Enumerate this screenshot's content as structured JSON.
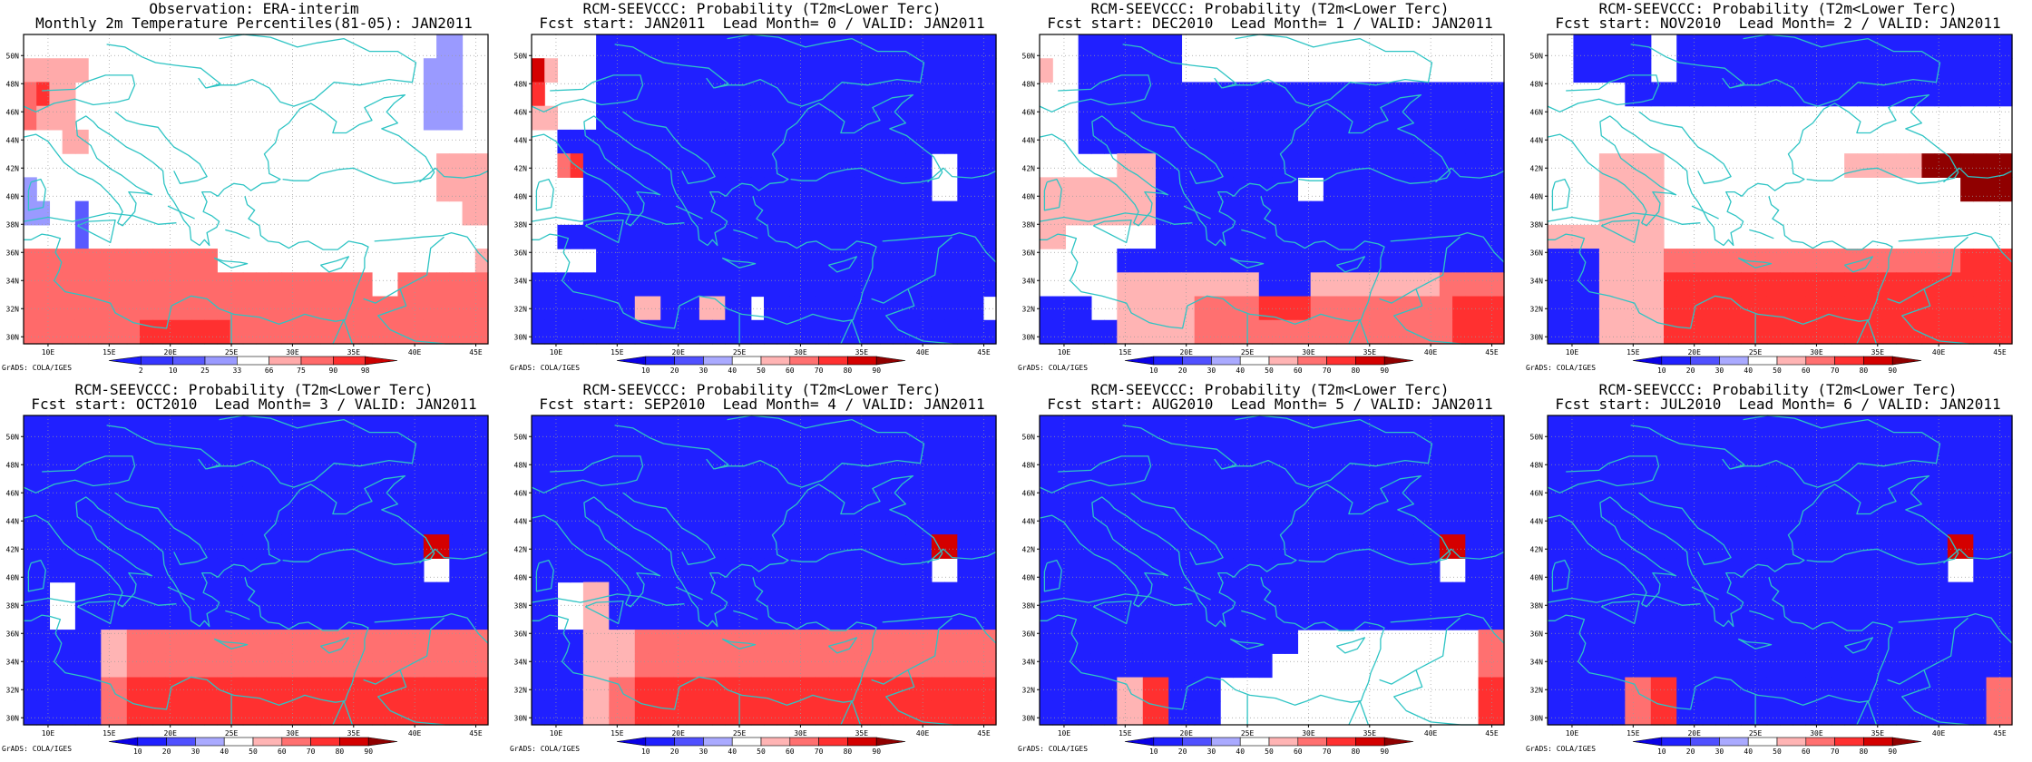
{
  "colors": {
    "coastline": "#2ec4c4",
    "frame": "#000000",
    "grid": "#9a9a9a"
  },
  "axes": {
    "lon_ticks": [
      "10E",
      "15E",
      "20E",
      "25E",
      "30E",
      "35E",
      "40E",
      "45E"
    ],
    "lat_ticks": [
      "30N",
      "32N",
      "34N",
      "36N",
      "38N",
      "40N",
      "42N",
      "44N",
      "46N",
      "48N",
      "50N"
    ],
    "lon_range": [
      8,
      46
    ],
    "lat_range": [
      29.5,
      51.5
    ]
  },
  "credit": "GrADS: COLA/IGES",
  "colorbars": {
    "percentile": {
      "labels": [
        "2",
        "10",
        "25",
        "33",
        "66",
        "75",
        "90",
        "98"
      ],
      "colors": [
        "#1a1aff",
        "#3535ff",
        "#5a5aff",
        "#9a9aff",
        "#ffffff",
        "#ffaaaa",
        "#ff6a6a",
        "#ff3030",
        "#cc0000"
      ]
    },
    "probability": {
      "labels": [
        "10",
        "20",
        "30",
        "40",
        "50",
        "60",
        "70",
        "80",
        "90"
      ],
      "colors": [
        "#0a00e6",
        "#2020ff",
        "#5050ff",
        "#aaaaff",
        "#ffffff",
        "#ffb4b4",
        "#ff7070",
        "#ff3030",
        "#d40000",
        "#900000"
      ]
    }
  },
  "panels": [
    {
      "title1": "Observation: ERA-interim",
      "title2": "Monthly 2m Temperature Percentiles(81-05): JAN2011",
      "colorbar": "percentile",
      "grid_rows": [
        "444444444444444444444444444444443344",
        "555554444444444444444444444444433344",
        "675544444444444444444444444444433344",
        "655544444444444444444444444444433344",
        "444554444444444444444444444444444444",
        "444444444444444444444444444444445555",
        "344444444444444444444444444444445555",
        "334424444444444444444444444444444455",
        "444424444444444444444444444444444444",
        "666666666666666444444444444444444445",
        "666666666666666666666666666446666666",
        "666666666666666666666666666666666666",
        "666666666777777766666666666666666666"
      ]
    },
    {
      "title1": "RCM-SEEVCCC: Probability (T2m<Lower Terc)",
      "title2": "Fcst start: JAN2011  Lead Month= 0 / VALID: JAN2011",
      "colorbar": "probability",
      "grid_rows": [
        "444441111111111111111111111111111111",
        "854441111111111111111111111111111111",
        "744441111111111111111111111111111111",
        "554441111111111111111111111111111111",
        "441111111111111111111111111111111111",
        "446711111111111111111111111111144111",
        "444411111111111111111111111111144111",
        "444411111111111111111111111111111111",
        "441111111111111111111111111111111111",
        "444441111111111111111111111111111111",
        "111111111111111111111111111111111111",
        "111111115511155114111111111111111114",
        "111111111111111111111111111111111111"
      ]
    },
    {
      "title1": "RCM-SEEVCCC: Probability (T2m<Lower Terc)",
      "title2": "Fcst start: DEC2010  Lead Month= 1 / VALID: JAN2011",
      "colorbar": "probability",
      "grid_rows": [
        "444111111114444444444444444444444444",
        "544111111114444444444444444444444444",
        "444111111111111111111111111111111111",
        "444111111111111111111111111111111111",
        "444111111111111111111111111111111111",
        "444444555111111111111111111111111111",
        "555555555111111111114411111111111111",
        "555555555111111111111111111111111111",
        "554444444111111111111111111111111111",
        "444444111111111111111111111111111111",
        "444444555555555551111555555555566666",
        "111144555555666667777666666666667777",
        "111111555555666666666666666666667777"
      ]
    },
    {
      "title1": "RCM-SEEVCCC: Probability (T2m<Lower Terc)",
      "title2": "Fcst start: NOV2010  Lead Month= 2 / VALID: JAN2011",
      "colorbar": "probability",
      "grid_rows": [
        "441111114411111111111111111111111111",
        "441111114411111111111111111111111111",
        "444444111111111111111111111111111111",
        "444444444444444444444444444444444444",
        "444444444444444444444444444444444444",
        "444455555444444444444445555559999999",
        "444455555444444444444444444444449999",
        "444455555444444444444444444444444444",
        "555555555444444444444444444444444444",
        "111155555666666666666666666666667777",
        "111155555777777777777777777777777777",
        "111155555777777777777777777777777777",
        "111155555777777777777777777777777777"
      ]
    },
    {
      "title1": "RCM-SEEVCCC: Probability (T2m<Lower Terc)",
      "title2": "Fcst start: OCT2010  Lead Month= 3 / VALID: JAN2011",
      "colorbar": "probability",
      "grid_rows": [
        "111111111111111111111111111111111111",
        "111111111111111111111111111111111111",
        "111111111111111111111111111111111111",
        "111111111111111111111111111111111111",
        "111111111111111111111111111111111111",
        "111111111111111111111111111111188111",
        "111111111111111111111111111111144111",
        "114411111111111111111111111111111111",
        "114411111111111111111111111111111111",
        "111111556666666666666666666666666666",
        "111111556666666666666666666666666666",
        "111111667777777777777777777777777777",
        "111111667777777777777777777777777777"
      ]
    },
    {
      "title1": "RCM-SEEVCCC: Probability (T2m<Lower Terc)",
      "title2": "Fcst start: SEP2010  Lead Month= 4 / VALID: JAN2011",
      "colorbar": "probability",
      "grid_rows": [
        "111111111111111111111111111111111111",
        "111111111111111111111111111111111111",
        "111111111111111111111111111111111111",
        "111111111111111111111111111111111111",
        "111111111111111111111111111111111111",
        "111111111111111111111111111111188111",
        "111111111111111111111111111111144111",
        "114455111111111111111111111111111111",
        "114455111111111111111111111111111111",
        "111155556666666666666666666666666666",
        "111155556666666666666666666666666666",
        "111155667777777777777777777777777777",
        "111155667777777777777777777777777777"
      ]
    },
    {
      "title1": "RCM-SEEVCCC: Probability (T2m<Lower Terc)",
      "title2": "Fcst start: AUG2010  Lead Month= 5 / VALID: JAN2011",
      "colorbar": "probability",
      "grid_rows": [
        "111111111111111111111111111111111111",
        "111111111111111111111111111111111111",
        "111111111111111111111111111111111111",
        "111111111111111111111111111111111111",
        "111111111111111111111111111111111111",
        "111111111111111111111111111111188111",
        "111111111111111111111111111111144111",
        "111111111111111111111111111111111111",
        "111111111111111111111111111111111111",
        "111111111111111111114444444444444466",
        "111111111111111111444444444444444466",
        "111111557711114444444444444444444477",
        "111111557711114444444444444444444477"
      ]
    },
    {
      "title1": "RCM-SEEVCCC: Probability (T2m<Lower Terc)",
      "title2": "Fcst start: JUL2010  Lead Month= 6 / VALID: JAN2011",
      "colorbar": "probability",
      "grid_rows": [
        "111111111111111111111111111111111111",
        "111111111111111111111111111111111111",
        "111111111111111111111111111111111111",
        "111111111111111111111111111111111111",
        "111111111111111111111111111111111111",
        "111111111111111111111111111111188111",
        "111111111111111111111111111111144111",
        "111111111111111111111111111111111111",
        "111111111111111111111111111111111111",
        "111111111111111111111111111111111111",
        "111111111111111111111111111111111111",
        "111111667711111111111111111111111166",
        "111111667711111111111111111111111166"
      ]
    }
  ]
}
